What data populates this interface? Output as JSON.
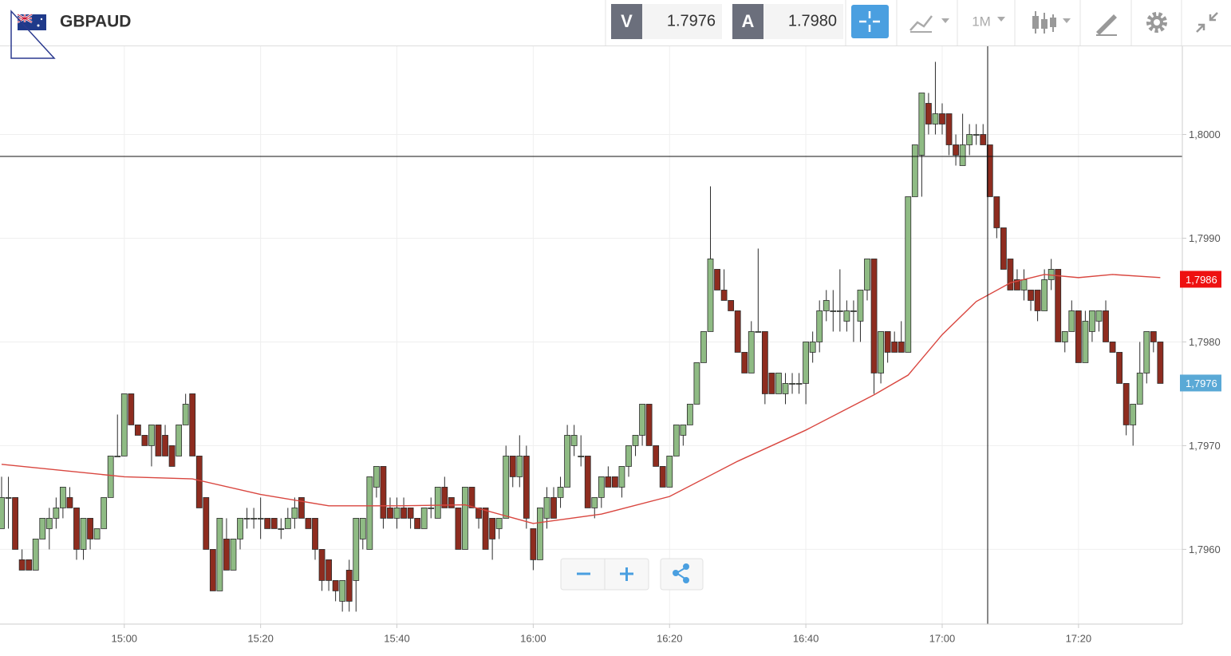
{
  "toolbar": {
    "symbol": "GBPAUD",
    "bid_label": "V",
    "bid": "1.7976",
    "ask_label": "A",
    "ask": "1.7980",
    "timeframe": "1M"
  },
  "chart_data": {
    "type": "candlestick",
    "up_color": "#8fbb84",
    "down_color": "#8e2c1f",
    "outline_color": "#2b2b2b",
    "grid": true,
    "ylim": [
      1.79528,
      1.80085
    ],
    "yticks": [
      {
        "value": 1.796,
        "label": "1,7960"
      },
      {
        "value": 1.797,
        "label": "1,7970"
      },
      {
        "value": 1.798,
        "label": "1,7980"
      },
      {
        "value": 1.799,
        "label": "1,7990"
      },
      {
        "value": 1.8,
        "label": "1,8000"
      }
    ],
    "xlim": [
      "14:42",
      "17:35"
    ],
    "xticks": [
      "15:00",
      "15:20",
      "15:40",
      "16:00",
      "16:20",
      "16:40",
      "17:00",
      "17:20"
    ],
    "price_tags": [
      {
        "value": 1.7986,
        "label": "1,7986",
        "color": "#ee1111"
      },
      {
        "value": 1.7976,
        "label": "1,7976",
        "color": "#5aa9d6"
      }
    ],
    "x": [
      "14:42",
      "14:43",
      "14:44",
      "14:45",
      "14:46",
      "14:47",
      "14:48",
      "14:49",
      "14:50",
      "14:51",
      "14:52",
      "14:53",
      "14:54",
      "14:55",
      "14:56",
      "14:57",
      "14:58",
      "14:59",
      "15:00",
      "15:01",
      "15:02",
      "15:03",
      "15:04",
      "15:05",
      "15:06",
      "15:07",
      "15:08",
      "15:09",
      "15:10",
      "15:11",
      "15:12",
      "15:13",
      "15:14",
      "15:15",
      "15:16",
      "15:17",
      "15:18",
      "15:19",
      "15:20",
      "15:21",
      "15:22",
      "15:23",
      "15:24",
      "15:25",
      "15:26",
      "15:27",
      "15:28",
      "15:29",
      "15:30",
      "15:31",
      "15:32",
      "15:33",
      "15:34",
      "15:35",
      "15:36",
      "15:37",
      "15:38",
      "15:39",
      "15:40",
      "15:41",
      "15:42",
      "15:43",
      "15:44",
      "15:45",
      "15:46",
      "15:47",
      "15:48",
      "15:49",
      "15:50",
      "15:51",
      "15:52",
      "15:53",
      "15:54",
      "15:55",
      "15:56",
      "15:57",
      "15:58",
      "15:59",
      "16:00",
      "16:01",
      "16:02",
      "16:03",
      "16:04",
      "16:05",
      "16:06",
      "16:07",
      "16:08",
      "16:09",
      "16:10",
      "16:11",
      "16:12",
      "16:13",
      "16:14",
      "16:15",
      "16:16",
      "16:17",
      "16:18",
      "16:19",
      "16:20",
      "16:21",
      "16:22",
      "16:23",
      "16:24",
      "16:25",
      "16:26",
      "16:27",
      "16:28",
      "16:29",
      "16:30",
      "16:31",
      "16:32",
      "16:33",
      "16:34",
      "16:35",
      "16:36",
      "16:37",
      "16:38",
      "16:39",
      "16:40",
      "16:41",
      "16:42",
      "16:43",
      "16:44",
      "16:45",
      "16:46",
      "16:47",
      "16:48",
      "16:49",
      "16:50",
      "16:51",
      "16:52",
      "16:53",
      "16:54",
      "16:55",
      "16:56",
      "16:57",
      "16:58",
      "16:59",
      "17:00",
      "17:01",
      "17:02",
      "17:03",
      "17:04",
      "17:05",
      "17:06",
      "17:07",
      "17:08",
      "17:09",
      "17:10",
      "17:11",
      "17:12",
      "17:13",
      "17:14",
      "17:15",
      "17:16",
      "17:17",
      "17:18",
      "17:19",
      "17:20",
      "17:21",
      "17:22",
      "17:23",
      "17:24",
      "17:25",
      "17:26",
      "17:27",
      "17:28",
      "17:29",
      "17:30",
      "17:31",
      "17:32"
    ],
    "open": [
      1.7962,
      1.7965,
      1.7965,
      1.7959,
      1.7959,
      1.7958,
      1.7961,
      1.7962,
      1.7963,
      1.7964,
      1.7965,
      1.7964,
      1.796,
      1.7963,
      1.7961,
      1.7962,
      1.7965,
      1.7969,
      1.7969,
      1.7975,
      1.7972,
      1.7971,
      1.797,
      1.7972,
      1.7971,
      1.797,
      1.7969,
      1.7972,
      1.7975,
      1.7969,
      1.7965,
      1.796,
      1.7956,
      1.7961,
      1.7958,
      1.7961,
      1.7963,
      1.7963,
      1.7963,
      1.7963,
      1.7963,
      1.7962,
      1.7962,
      1.7963,
      1.7965,
      1.7963,
      1.7963,
      1.796,
      1.7959,
      1.7957,
      1.7955,
      1.7958,
      1.7957,
      1.7961,
      1.796,
      1.7966,
      1.7968,
      1.7964,
      1.7963,
      1.7964,
      1.7964,
      1.7963,
      1.7962,
      1.7964,
      1.7963,
      1.7966,
      1.7965,
      1.7964,
      1.796,
      1.7966,
      1.7964,
      1.7964,
      1.7963,
      1.7962,
      1.7963,
      1.7969,
      1.7967,
      1.7969,
      1.7962,
      1.7959,
      1.7963,
      1.7965,
      1.7965,
      1.7966,
      1.797,
      1.7969,
      1.7969,
      1.7964,
      1.7965,
      1.7967,
      1.7967,
      1.7966,
      1.7968,
      1.797,
      1.7971,
      1.7974,
      1.797,
      1.7968,
      1.7966,
      1.7969,
      1.7971,
      1.7972,
      1.7974,
      1.7978,
      1.7981,
      1.7987,
      1.7985,
      1.7984,
      1.7983,
      1.7979,
      1.7977,
      1.7981,
      1.7981,
      1.7977,
      1.7975,
      1.7975,
      1.7976,
      1.7976,
      1.7976,
      1.7979,
      1.798,
      1.7983,
      1.7983,
      1.7983,
      1.7982,
      1.7983,
      1.7982,
      1.7985,
      1.7988,
      1.7977,
      1.7981,
      1.798,
      1.798,
      1.7979,
      1.7994,
      1.7998,
      1.8003,
      1.8001,
      1.8002,
      1.8002,
      1.7999,
      1.7997,
      1.7999,
      1.8,
      1.8,
      1.7999,
      1.7994,
      1.7991,
      1.7988,
      1.7986,
      1.7985,
      1.7985,
      1.7985,
      1.7983,
      1.7986,
      1.7987,
      1.798,
      1.7981,
      1.7983,
      1.7978,
      1.7981,
      1.7982,
      1.7983,
      1.798,
      1.7979,
      1.7976,
      1.7972,
      1.7974,
      1.7977,
      1.7981,
      1.798
    ],
    "high": [
      1.7967,
      1.7967,
      1.7965,
      1.796,
      1.7959,
      1.7961,
      1.7963,
      1.7964,
      1.7965,
      1.7966,
      1.7966,
      1.7964,
      1.7963,
      1.7963,
      1.7962,
      1.7965,
      1.7969,
      1.7973,
      1.7975,
      1.7975,
      1.7972,
      1.7971,
      1.7972,
      1.7972,
      1.7972,
      1.797,
      1.7972,
      1.7975,
      1.7975,
      1.7969,
      1.7965,
      1.796,
      1.7963,
      1.7963,
      1.7961,
      1.7963,
      1.7964,
      1.7964,
      1.7965,
      1.7963,
      1.7963,
      1.7963,
      1.7964,
      1.7965,
      1.7965,
      1.7963,
      1.7963,
      1.796,
      1.7959,
      1.7957,
      1.7957,
      1.7959,
      1.7963,
      1.7963,
      1.7967,
      1.7968,
      1.7968,
      1.7965,
      1.7965,
      1.7965,
      1.7964,
      1.7963,
      1.7964,
      1.7965,
      1.7966,
      1.7967,
      1.7965,
      1.7964,
      1.7966,
      1.7966,
      1.7964,
      1.7964,
      1.7963,
      1.7963,
      1.797,
      1.7969,
      1.7971,
      1.797,
      1.7962,
      1.7964,
      1.7966,
      1.7966,
      1.7967,
      1.7972,
      1.7972,
      1.7971,
      1.7969,
      1.7965,
      1.7967,
      1.7968,
      1.7967,
      1.7968,
      1.797,
      1.7971,
      1.7974,
      1.7974,
      1.797,
      1.7968,
      1.7969,
      1.7972,
      1.7972,
      1.7974,
      1.7978,
      1.7981,
      1.7995,
      1.7987,
      1.7987,
      1.7984,
      1.7983,
      1.7979,
      1.7982,
      1.7989,
      1.7981,
      1.7977,
      1.7977,
      1.7977,
      1.7977,
      1.7977,
      1.798,
      1.7981,
      1.7984,
      1.7985,
      1.7985,
      1.7987,
      1.7984,
      1.7984,
      1.7985,
      1.7988,
      1.7988,
      1.7981,
      1.7981,
      1.7981,
      1.7982,
      1.7994,
      1.7999,
      1.8004,
      1.8004,
      1.8007,
      1.8003,
      1.8002,
      1.8,
      1.8002,
      1.8001,
      1.8001,
      1.8001,
      1.7999,
      1.7994,
      1.7991,
      1.7988,
      1.7987,
      1.7987,
      1.7985,
      1.7985,
      1.7987,
      1.7988,
      1.7987,
      1.7981,
      1.7984,
      1.7983,
      1.7983,
      1.7983,
      1.7983,
      1.7984,
      1.798,
      1.7979,
      1.7976,
      1.7974,
      1.798,
      1.7981,
      1.7981,
      1.798
    ],
    "low": [
      1.7962,
      1.7962,
      1.796,
      1.7958,
      1.7958,
      1.7958,
      1.7961,
      1.796,
      1.7962,
      1.7963,
      1.7964,
      1.7959,
      1.7959,
      1.796,
      1.7961,
      1.7962,
      1.7965,
      1.7969,
      1.7969,
      1.7972,
      1.7971,
      1.797,
      1.7968,
      1.7969,
      1.7969,
      1.7968,
      1.7969,
      1.7972,
      1.7969,
      1.7964,
      1.796,
      1.7956,
      1.7956,
      1.7958,
      1.7958,
      1.796,
      1.7962,
      1.7962,
      1.7961,
      1.7962,
      1.7962,
      1.7961,
      1.7962,
      1.7962,
      1.7963,
      1.7962,
      1.7959,
      1.7956,
      1.7956,
      1.7955,
      1.7954,
      1.7954,
      1.7954,
      1.796,
      1.796,
      1.7965,
      1.7962,
      1.7963,
      1.7962,
      1.7963,
      1.7962,
      1.7962,
      1.7962,
      1.7963,
      1.7963,
      1.7964,
      1.7964,
      1.796,
      1.796,
      1.7964,
      1.7962,
      1.796,
      1.7959,
      1.7961,
      1.7963,
      1.7966,
      1.7966,
      1.7962,
      1.7958,
      1.7959,
      1.7962,
      1.7963,
      1.7964,
      1.7966,
      1.7969,
      1.7968,
      1.7964,
      1.7963,
      1.7964,
      1.7966,
      1.7966,
      1.7965,
      1.7967,
      1.7969,
      1.797,
      1.797,
      1.7968,
      1.7966,
      1.7966,
      1.7969,
      1.797,
      1.7972,
      1.7974,
      1.7978,
      1.7981,
      1.7985,
      1.7984,
      1.7983,
      1.7979,
      1.7977,
      1.7977,
      1.7981,
      1.7974,
      1.7975,
      1.7975,
      1.7974,
      1.7975,
      1.7975,
      1.7974,
      1.7978,
      1.7979,
      1.7982,
      1.7981,
      1.7981,
      1.7981,
      1.798,
      1.798,
      1.7984,
      1.7975,
      1.7976,
      1.7978,
      1.7979,
      1.7979,
      1.7979,
      1.7994,
      1.7994,
      1.8,
      1.8,
      1.8,
      1.7998,
      1.7997,
      1.7997,
      1.7998,
      1.7999,
      1.7999,
      1.7994,
      1.799,
      1.7987,
      1.7985,
      1.7985,
      1.7984,
      1.7983,
      1.7982,
      1.7983,
      1.7985,
      1.798,
      1.7979,
      1.7981,
      1.7978,
      1.7978,
      1.798,
      1.7981,
      1.798,
      1.7979,
      1.7976,
      1.7971,
      1.797,
      1.7974,
      1.7976,
      1.7979,
      1.7976
    ],
    "close": [
      1.7965,
      1.7965,
      1.796,
      1.7958,
      1.7958,
      1.7961,
      1.7963,
      1.7963,
      1.7964,
      1.7966,
      1.7964,
      1.796,
      1.7963,
      1.7961,
      1.7962,
      1.7965,
      1.7969,
      1.7969,
      1.7975,
      1.7972,
      1.7971,
      1.797,
      1.7972,
      1.7969,
      1.7969,
      1.7968,
      1.7972,
      1.7974,
      1.7969,
      1.7964,
      1.796,
      1.7956,
      1.7963,
      1.7958,
      1.7961,
      1.7963,
      1.7963,
      1.7963,
      1.7963,
      1.7962,
      1.7962,
      1.7962,
      1.7963,
      1.7964,
      1.7963,
      1.7962,
      1.796,
      1.7957,
      1.7957,
      1.7956,
      1.7957,
      1.7955,
      1.7963,
      1.7963,
      1.7967,
      1.7968,
      1.7963,
      1.7963,
      1.7964,
      1.7963,
      1.7963,
      1.7962,
      1.7964,
      1.7964,
      1.7966,
      1.7964,
      1.7964,
      1.796,
      1.7966,
      1.7964,
      1.7963,
      1.796,
      1.7961,
      1.7963,
      1.7969,
      1.7967,
      1.7969,
      1.7963,
      1.7959,
      1.7964,
      1.7965,
      1.7963,
      1.7966,
      1.7971,
      1.7971,
      1.7969,
      1.7964,
      1.7965,
      1.7967,
      1.7966,
      1.7966,
      1.7968,
      1.797,
      1.7971,
      1.7974,
      1.797,
      1.7968,
      1.7966,
      1.7969,
      1.7972,
      1.7972,
      1.7974,
      1.7978,
      1.7981,
      1.7988,
      1.7985,
      1.7984,
      1.7983,
      1.7979,
      1.7977,
      1.7981,
      1.7981,
      1.7975,
      1.7975,
      1.7977,
      1.7976,
      1.7976,
      1.7976,
      1.798,
      1.798,
      1.7983,
      1.7984,
      1.7983,
      1.7983,
      1.7983,
      1.7983,
      1.7985,
      1.7988,
      1.7977,
      1.7981,
      1.7979,
      1.7979,
      1.7979,
      1.7994,
      1.7999,
      1.8004,
      1.8001,
      1.8002,
      1.8001,
      1.7999,
      1.7998,
      1.7999,
      1.8,
      1.8,
      1.7999,
      1.7994,
      1.7991,
      1.7987,
      1.7985,
      1.7985,
      1.7986,
      1.7984,
      1.7983,
      1.7986,
      1.7987,
      1.798,
      1.7981,
      1.7983,
      1.7978,
      1.7982,
      1.7983,
      1.7983,
      1.798,
      1.7979,
      1.7976,
      1.7972,
      1.7974,
      1.7977,
      1.7981,
      1.798,
      1.7976
    ],
    "overlays": [
      {
        "type": "line",
        "color": "#d9463f",
        "x": [
          "14:42",
          "15:00",
          "15:10",
          "15:20",
          "15:30",
          "15:40",
          "15:50",
          "16:00",
          "16:10",
          "16:20",
          "16:30",
          "16:40",
          "16:50",
          "16:55",
          "17:00",
          "17:05",
          "17:10",
          "17:15",
          "17:20",
          "17:25",
          "17:32"
        ],
        "values": [
          1.79682,
          1.7967,
          1.79668,
          1.79653,
          1.79642,
          1.79642,
          1.79643,
          1.79625,
          1.79634,
          1.79651,
          1.79685,
          1.79715,
          1.79749,
          1.79768,
          1.79807,
          1.79839,
          1.79857,
          1.79865,
          1.79862,
          1.79865,
          1.79862
        ]
      }
    ]
  }
}
